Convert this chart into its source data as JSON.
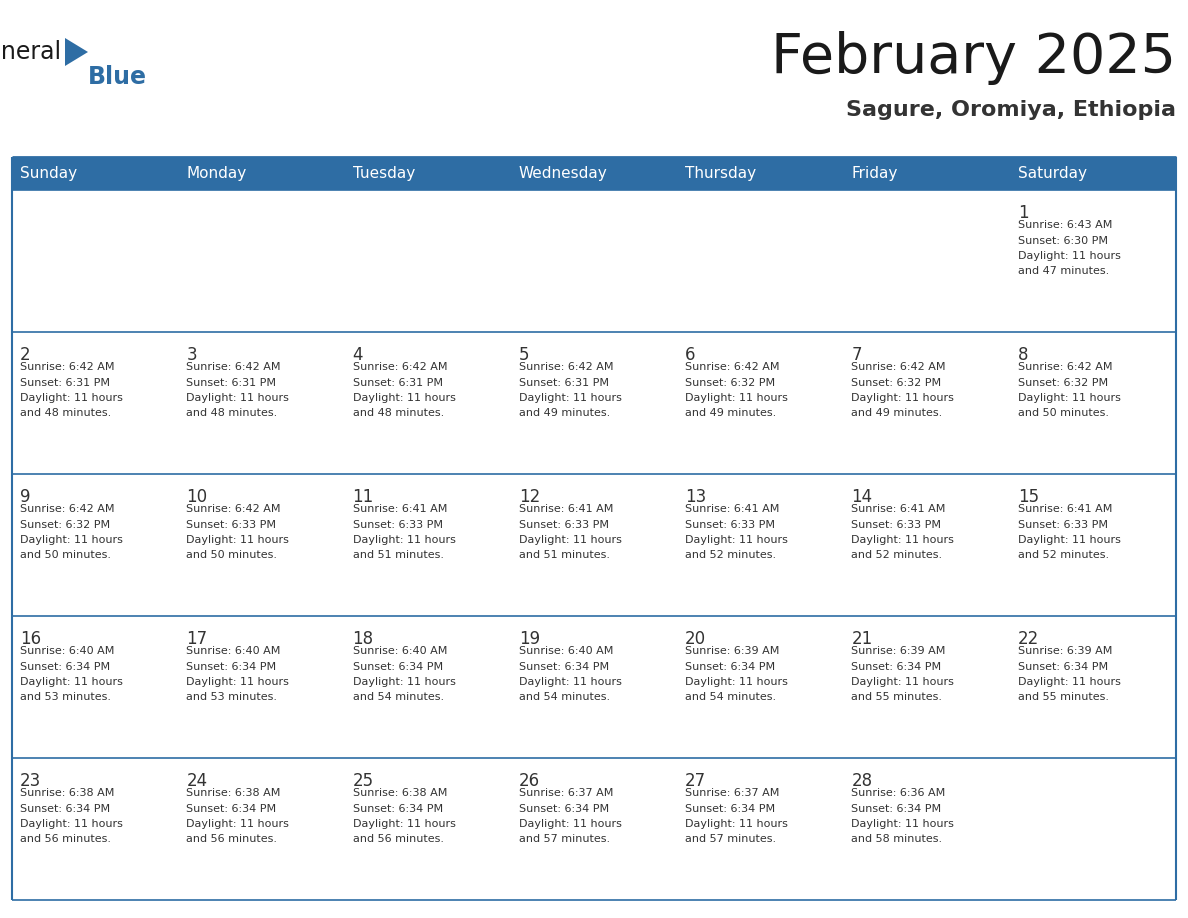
{
  "title": "February 2025",
  "subtitle": "Sagure, Oromiya, Ethiopia",
  "header_color": "#2E6DA4",
  "header_text_color": "#FFFFFF",
  "cell_bg_color": "#FFFFFF",
  "week_separator_color": "#2E6DA4",
  "outer_border_color": "#2E6DA4",
  "days_of_week": [
    "Sunday",
    "Monday",
    "Tuesday",
    "Wednesday",
    "Thursday",
    "Friday",
    "Saturday"
  ],
  "title_color": "#1a1a1a",
  "subtitle_color": "#333333",
  "day_number_color": "#333333",
  "cell_text_color": "#333333",
  "logo_general_color": "#1a1a1a",
  "logo_blue_color": "#2E6DA4",
  "weeks": [
    [
      {
        "day": "",
        "info": ""
      },
      {
        "day": "",
        "info": ""
      },
      {
        "day": "",
        "info": ""
      },
      {
        "day": "",
        "info": ""
      },
      {
        "day": "",
        "info": ""
      },
      {
        "day": "",
        "info": ""
      },
      {
        "day": "1",
        "info": "Sunrise: 6:43 AM\nSunset: 6:30 PM\nDaylight: 11 hours\nand 47 minutes."
      }
    ],
    [
      {
        "day": "2",
        "info": "Sunrise: 6:42 AM\nSunset: 6:31 PM\nDaylight: 11 hours\nand 48 minutes."
      },
      {
        "day": "3",
        "info": "Sunrise: 6:42 AM\nSunset: 6:31 PM\nDaylight: 11 hours\nand 48 minutes."
      },
      {
        "day": "4",
        "info": "Sunrise: 6:42 AM\nSunset: 6:31 PM\nDaylight: 11 hours\nand 48 minutes."
      },
      {
        "day": "5",
        "info": "Sunrise: 6:42 AM\nSunset: 6:31 PM\nDaylight: 11 hours\nand 49 minutes."
      },
      {
        "day": "6",
        "info": "Sunrise: 6:42 AM\nSunset: 6:32 PM\nDaylight: 11 hours\nand 49 minutes."
      },
      {
        "day": "7",
        "info": "Sunrise: 6:42 AM\nSunset: 6:32 PM\nDaylight: 11 hours\nand 49 minutes."
      },
      {
        "day": "8",
        "info": "Sunrise: 6:42 AM\nSunset: 6:32 PM\nDaylight: 11 hours\nand 50 minutes."
      }
    ],
    [
      {
        "day": "9",
        "info": "Sunrise: 6:42 AM\nSunset: 6:32 PM\nDaylight: 11 hours\nand 50 minutes."
      },
      {
        "day": "10",
        "info": "Sunrise: 6:42 AM\nSunset: 6:33 PM\nDaylight: 11 hours\nand 50 minutes."
      },
      {
        "day": "11",
        "info": "Sunrise: 6:41 AM\nSunset: 6:33 PM\nDaylight: 11 hours\nand 51 minutes."
      },
      {
        "day": "12",
        "info": "Sunrise: 6:41 AM\nSunset: 6:33 PM\nDaylight: 11 hours\nand 51 minutes."
      },
      {
        "day": "13",
        "info": "Sunrise: 6:41 AM\nSunset: 6:33 PM\nDaylight: 11 hours\nand 52 minutes."
      },
      {
        "day": "14",
        "info": "Sunrise: 6:41 AM\nSunset: 6:33 PM\nDaylight: 11 hours\nand 52 minutes."
      },
      {
        "day": "15",
        "info": "Sunrise: 6:41 AM\nSunset: 6:33 PM\nDaylight: 11 hours\nand 52 minutes."
      }
    ],
    [
      {
        "day": "16",
        "info": "Sunrise: 6:40 AM\nSunset: 6:34 PM\nDaylight: 11 hours\nand 53 minutes."
      },
      {
        "day": "17",
        "info": "Sunrise: 6:40 AM\nSunset: 6:34 PM\nDaylight: 11 hours\nand 53 minutes."
      },
      {
        "day": "18",
        "info": "Sunrise: 6:40 AM\nSunset: 6:34 PM\nDaylight: 11 hours\nand 54 minutes."
      },
      {
        "day": "19",
        "info": "Sunrise: 6:40 AM\nSunset: 6:34 PM\nDaylight: 11 hours\nand 54 minutes."
      },
      {
        "day": "20",
        "info": "Sunrise: 6:39 AM\nSunset: 6:34 PM\nDaylight: 11 hours\nand 54 minutes."
      },
      {
        "day": "21",
        "info": "Sunrise: 6:39 AM\nSunset: 6:34 PM\nDaylight: 11 hours\nand 55 minutes."
      },
      {
        "day": "22",
        "info": "Sunrise: 6:39 AM\nSunset: 6:34 PM\nDaylight: 11 hours\nand 55 minutes."
      }
    ],
    [
      {
        "day": "23",
        "info": "Sunrise: 6:38 AM\nSunset: 6:34 PM\nDaylight: 11 hours\nand 56 minutes."
      },
      {
        "day": "24",
        "info": "Sunrise: 6:38 AM\nSunset: 6:34 PM\nDaylight: 11 hours\nand 56 minutes."
      },
      {
        "day": "25",
        "info": "Sunrise: 6:38 AM\nSunset: 6:34 PM\nDaylight: 11 hours\nand 56 minutes."
      },
      {
        "day": "26",
        "info": "Sunrise: 6:37 AM\nSunset: 6:34 PM\nDaylight: 11 hours\nand 57 minutes."
      },
      {
        "day": "27",
        "info": "Sunrise: 6:37 AM\nSunset: 6:34 PM\nDaylight: 11 hours\nand 57 minutes."
      },
      {
        "day": "28",
        "info": "Sunrise: 6:36 AM\nSunset: 6:34 PM\nDaylight: 11 hours\nand 58 minutes."
      },
      {
        "day": "",
        "info": ""
      }
    ]
  ]
}
